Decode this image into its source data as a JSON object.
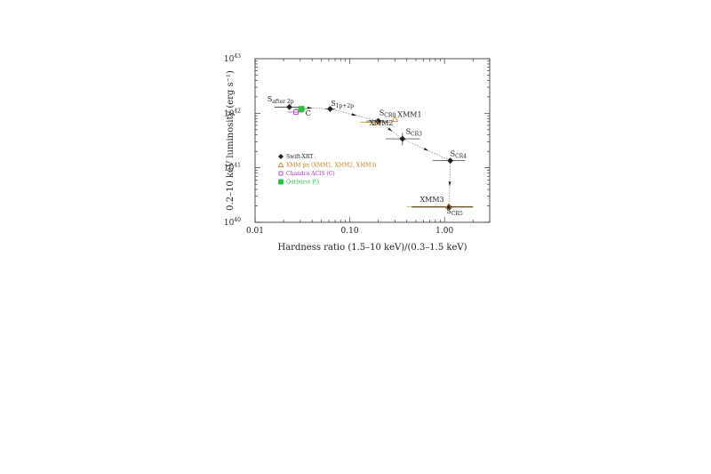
{
  "chart_data": {
    "type": "scatter",
    "title": "",
    "xlabel": "Hardness ratio (1.5–10 keV)/(0.3–1.5 keV)",
    "ylabel": "0.2–10 keV luminosity (erg s⁻¹)",
    "xscale": "log",
    "yscale": "log",
    "xlim": [
      0.01,
      3.0
    ],
    "ylim": [
      1e+40,
      1e+43
    ],
    "grid": false,
    "legend_position": "center-left",
    "x_ticks": [
      {
        "value": 0.01,
        "label": "0.01"
      },
      {
        "value": 0.1,
        "label": "0.10"
      },
      {
        "value": 1.0,
        "label": "1.00"
      }
    ],
    "y_ticks": [
      {
        "value": 1e+40,
        "base": "10",
        "exp": "40"
      },
      {
        "value": 1e+41,
        "base": "10",
        "exp": "41"
      },
      {
        "value": 1e+42,
        "base": "10",
        "exp": "42"
      },
      {
        "value": 1e+43,
        "base": "10",
        "exp": "43"
      }
    ],
    "colors": {
      "swift": "#222222",
      "xmm": "#c07d16",
      "chandra": "#b030c0",
      "outburst": "#2fbf40",
      "path": "#888888"
    },
    "series": [
      {
        "name": "Swift-XRT",
        "marker": "diamond",
        "points": [
          {
            "x": 0.023,
            "y": 1.3e+42,
            "xerr": [
              0.016,
              0.03
            ]
          },
          {
            "x": 0.062,
            "y": 1.2e+42,
            "xerr": [
              0.055,
              0.07
            ]
          },
          {
            "x": 0.2,
            "y": 7.2e+41,
            "xerr": [
              0.15,
              0.25
            ]
          },
          {
            "x": 0.36,
            "y": 3.4e+41,
            "xerr": [
              0.24,
              0.55
            ],
            "yerr": [
              2.6e+41,
              4.4e+41
            ]
          },
          {
            "x": 1.15,
            "y": 1.35e+41,
            "xerr": [
              0.75,
              1.65
            ]
          },
          {
            "x": 1.12,
            "y": 1.9e+40,
            "xerr": [
              0.45,
              2.0
            ]
          }
        ]
      },
      {
        "name": "XMM pn (XMM1, XMM2, XMM3)",
        "marker": "triangle",
        "points": [
          {
            "x": 0.3,
            "y": 7.8e+41
          },
          {
            "x": 0.19,
            "y": 6.8e+41,
            "xerr": [
              0.13,
              0.27
            ]
          },
          {
            "x": 1.1,
            "y": 1.95e+40,
            "xerr": [
              0.4,
              2.0
            ]
          }
        ]
      },
      {
        "name": "Chandra ACIS (C)",
        "marker": "square",
        "points": [
          {
            "x": 0.027,
            "y": 1.05e+42,
            "xerr": [
              0.022,
              0.032
            ]
          }
        ]
      },
      {
        "name": "Outburst P3",
        "marker": "filled-square",
        "points": [
          {
            "x": 0.031,
            "y": 1.2e+42,
            "xerr": [
              0.026,
              0.036
            ]
          }
        ]
      }
    ],
    "annotations": [
      {
        "main": "S",
        "sub": "after 2p",
        "x": 0.0135,
        "y": 1.65e+42
      },
      {
        "main": "S",
        "sub": "1p+2p",
        "x": 0.063,
        "y": 1.38e+42
      },
      {
        "main": "S",
        "sub": "CR0",
        "x": 0.205,
        "y": 9.2e+41
      },
      {
        "main": "XMM1",
        "x": 0.32,
        "y": 8.6e+41,
        "kind": "xmm"
      },
      {
        "main": "XMM2",
        "x": 0.16,
        "y": 6e+41,
        "kind": "xmm"
      },
      {
        "main": "C",
        "x": 0.034,
        "y": 9e+41,
        "kind": "chandra"
      },
      {
        "main": "S",
        "sub": "CR3",
        "x": 0.39,
        "y": 4.2e+41
      },
      {
        "main": "S",
        "sub": "CR4",
        "x": 1.15,
        "y": 1.65e+41
      },
      {
        "main": "XMM3",
        "x": 0.55,
        "y": 2.35e+40,
        "kind": "xmm"
      },
      {
        "main": "S",
        "sub": "CR5",
        "x": 1.05,
        "y": 1.45e+40
      }
    ],
    "path_order": [
      [
        0.023,
        1.3e+42
      ],
      [
        0.062,
        1.2e+42
      ],
      [
        0.2,
        7.2e+41
      ],
      [
        0.36,
        3.4e+41
      ],
      [
        1.15,
        1.35e+41
      ],
      [
        1.12,
        1.9e+40
      ]
    ]
  }
}
